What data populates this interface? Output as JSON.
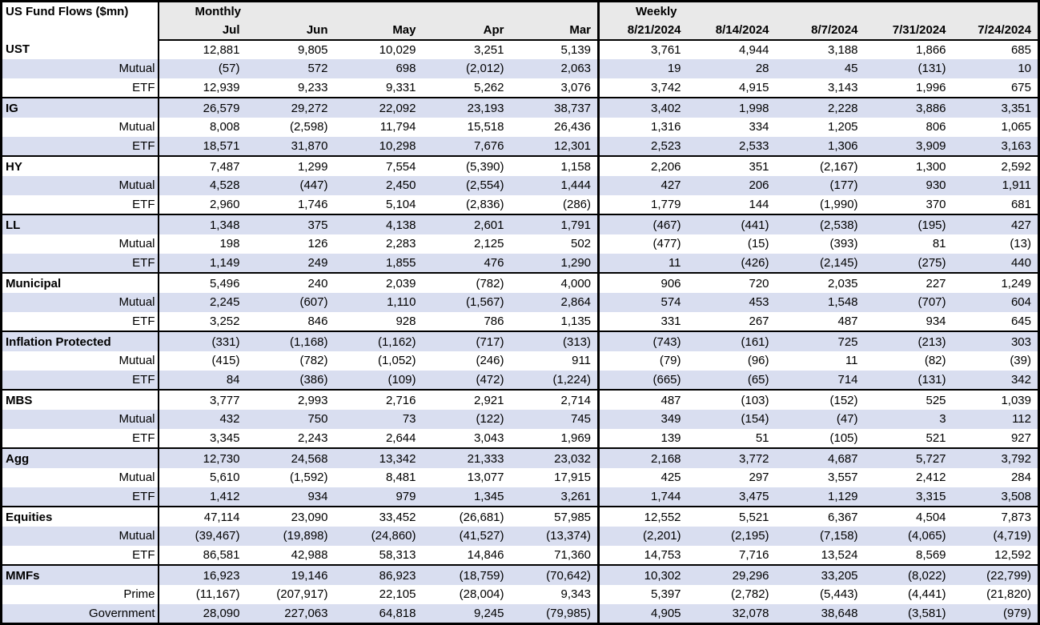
{
  "colors": {
    "stripe_row": "#D9DEF0",
    "header_band": "#E9E9E9",
    "border": "#000000",
    "background": "#FFFFFF",
    "text": "#000000"
  },
  "chart_data": {
    "type": "table",
    "title": "US Fund Flows ($mn)",
    "units": "$mn",
    "column_groups": [
      {
        "label": "Monthly",
        "columns": [
          "Jul",
          "Jun",
          "May",
          "Apr",
          "Mar"
        ]
      },
      {
        "label": "Weekly",
        "columns": [
          "8/21/2024",
          "8/14/2024",
          "8/7/2024",
          "7/31/2024",
          "7/24/2024"
        ]
      }
    ],
    "groups": [
      {
        "label": "UST",
        "rows": [
          {
            "label": "UST",
            "monthly": [
              "12,881",
              "9,805",
              "10,029",
              "3,251",
              "5,139"
            ],
            "weekly": [
              "3,761",
              "4,944",
              "3,188",
              "1,866",
              "685"
            ]
          },
          {
            "label": "Mutual",
            "monthly": [
              "(57)",
              "572",
              "698",
              "(2,012)",
              "2,063"
            ],
            "weekly": [
              "19",
              "28",
              "45",
              "(131)",
              "10"
            ]
          },
          {
            "label": "ETF",
            "monthly": [
              "12,939",
              "9,233",
              "9,331",
              "5,262",
              "3,076"
            ],
            "weekly": [
              "3,742",
              "4,915",
              "3,143",
              "1,996",
              "675"
            ]
          }
        ]
      },
      {
        "label": "IG",
        "rows": [
          {
            "label": "IG",
            "monthly": [
              "26,579",
              "29,272",
              "22,092",
              "23,193",
              "38,737"
            ],
            "weekly": [
              "3,402",
              "1,998",
              "2,228",
              "3,886",
              "3,351"
            ]
          },
          {
            "label": "Mutual",
            "monthly": [
              "8,008",
              "(2,598)",
              "11,794",
              "15,518",
              "26,436"
            ],
            "weekly": [
              "1,316",
              "334",
              "1,205",
              "806",
              "1,065"
            ]
          },
          {
            "label": "ETF",
            "monthly": [
              "18,571",
              "31,870",
              "10,298",
              "7,676",
              "12,301"
            ],
            "weekly": [
              "2,523",
              "2,533",
              "1,306",
              "3,909",
              "3,163"
            ]
          }
        ]
      },
      {
        "label": "HY",
        "rows": [
          {
            "label": "HY",
            "monthly": [
              "7,487",
              "1,299",
              "7,554",
              "(5,390)",
              "1,158"
            ],
            "weekly": [
              "2,206",
              "351",
              "(2,167)",
              "1,300",
              "2,592"
            ]
          },
          {
            "label": "Mutual",
            "monthly": [
              "4,528",
              "(447)",
              "2,450",
              "(2,554)",
              "1,444"
            ],
            "weekly": [
              "427",
              "206",
              "(177)",
              "930",
              "1,911"
            ]
          },
          {
            "label": "ETF",
            "monthly": [
              "2,960",
              "1,746",
              "5,104",
              "(2,836)",
              "(286)"
            ],
            "weekly": [
              "1,779",
              "144",
              "(1,990)",
              "370",
              "681"
            ]
          }
        ]
      },
      {
        "label": "LL",
        "rows": [
          {
            "label": "LL",
            "monthly": [
              "1,348",
              "375",
              "4,138",
              "2,601",
              "1,791"
            ],
            "weekly": [
              "(467)",
              "(441)",
              "(2,538)",
              "(195)",
              "427"
            ]
          },
          {
            "label": "Mutual",
            "monthly": [
              "198",
              "126",
              "2,283",
              "2,125",
              "502"
            ],
            "weekly": [
              "(477)",
              "(15)",
              "(393)",
              "81",
              "(13)"
            ]
          },
          {
            "label": "ETF",
            "monthly": [
              "1,149",
              "249",
              "1,855",
              "476",
              "1,290"
            ],
            "weekly": [
              "11",
              "(426)",
              "(2,145)",
              "(275)",
              "440"
            ]
          }
        ]
      },
      {
        "label": "Municipal",
        "rows": [
          {
            "label": "Municipal",
            "monthly": [
              "5,496",
              "240",
              "2,039",
              "(782)",
              "4,000"
            ],
            "weekly": [
              "906",
              "720",
              "2,035",
              "227",
              "1,249"
            ]
          },
          {
            "label": "Mutual",
            "monthly": [
              "2,245",
              "(607)",
              "1,110",
              "(1,567)",
              "2,864"
            ],
            "weekly": [
              "574",
              "453",
              "1,548",
              "(707)",
              "604"
            ]
          },
          {
            "label": "ETF",
            "monthly": [
              "3,252",
              "846",
              "928",
              "786",
              "1,135"
            ],
            "weekly": [
              "331",
              "267",
              "487",
              "934",
              "645"
            ]
          }
        ]
      },
      {
        "label": "Inflation Protected",
        "rows": [
          {
            "label": "Inflation Protected",
            "monthly": [
              "(331)",
              "(1,168)",
              "(1,162)",
              "(717)",
              "(313)"
            ],
            "weekly": [
              "(743)",
              "(161)",
              "725",
              "(213)",
              "303"
            ]
          },
          {
            "label": "Mutual",
            "monthly": [
              "(415)",
              "(782)",
              "(1,052)",
              "(246)",
              "911"
            ],
            "weekly": [
              "(79)",
              "(96)",
              "11",
              "(82)",
              "(39)"
            ]
          },
          {
            "label": "ETF",
            "monthly": [
              "84",
              "(386)",
              "(109)",
              "(472)",
              "(1,224)"
            ],
            "weekly": [
              "(665)",
              "(65)",
              "714",
              "(131)",
              "342"
            ]
          }
        ]
      },
      {
        "label": "MBS",
        "rows": [
          {
            "label": "MBS",
            "monthly": [
              "3,777",
              "2,993",
              "2,716",
              "2,921",
              "2,714"
            ],
            "weekly": [
              "487",
              "(103)",
              "(152)",
              "525",
              "1,039"
            ]
          },
          {
            "label": "Mutual",
            "monthly": [
              "432",
              "750",
              "73",
              "(122)",
              "745"
            ],
            "weekly": [
              "349",
              "(154)",
              "(47)",
              "3",
              "112"
            ]
          },
          {
            "label": "ETF",
            "monthly": [
              "3,345",
              "2,243",
              "2,644",
              "3,043",
              "1,969"
            ],
            "weekly": [
              "139",
              "51",
              "(105)",
              "521",
              "927"
            ]
          }
        ]
      },
      {
        "label": "Agg",
        "rows": [
          {
            "label": "Agg",
            "monthly": [
              "12,730",
              "24,568",
              "13,342",
              "21,333",
              "23,032"
            ],
            "weekly": [
              "2,168",
              "3,772",
              "4,687",
              "5,727",
              "3,792"
            ]
          },
          {
            "label": "Mutual",
            "monthly": [
              "5,610",
              "(1,592)",
              "8,481",
              "13,077",
              "17,915"
            ],
            "weekly": [
              "425",
              "297",
              "3,557",
              "2,412",
              "284"
            ]
          },
          {
            "label": "ETF",
            "monthly": [
              "1,412",
              "934",
              "979",
              "1,345",
              "3,261"
            ],
            "weekly": [
              "1,744",
              "3,475",
              "1,129",
              "3,315",
              "3,508"
            ]
          }
        ]
      },
      {
        "label": "Equities",
        "rows": [
          {
            "label": "Equities",
            "monthly": [
              "47,114",
              "23,090",
              "33,452",
              "(26,681)",
              "57,985"
            ],
            "weekly": [
              "12,552",
              "5,521",
              "6,367",
              "4,504",
              "7,873"
            ]
          },
          {
            "label": "Mutual",
            "monthly": [
              "(39,467)",
              "(19,898)",
              "(24,860)",
              "(41,527)",
              "(13,374)"
            ],
            "weekly": [
              "(2,201)",
              "(2,195)",
              "(7,158)",
              "(4,065)",
              "(4,719)"
            ]
          },
          {
            "label": "ETF",
            "monthly": [
              "86,581",
              "42,988",
              "58,313",
              "14,846",
              "71,360"
            ],
            "weekly": [
              "14,753",
              "7,716",
              "13,524",
              "8,569",
              "12,592"
            ]
          }
        ]
      },
      {
        "label": "MMFs",
        "rows": [
          {
            "label": "MMFs",
            "monthly": [
              "16,923",
              "19,146",
              "86,923",
              "(18,759)",
              "(70,642)"
            ],
            "weekly": [
              "10,302",
              "29,296",
              "33,205",
              "(8,022)",
              "(22,799)"
            ]
          },
          {
            "label": "Prime",
            "monthly": [
              "(11,167)",
              "(207,917)",
              "22,105",
              "(28,004)",
              "9,343"
            ],
            "weekly": [
              "5,397",
              "(2,782)",
              "(5,443)",
              "(4,441)",
              "(21,820)"
            ]
          },
          {
            "label": "Government",
            "monthly": [
              "28,090",
              "227,063",
              "64,818",
              "9,245",
              "(79,985)"
            ],
            "weekly": [
              "4,905",
              "32,078",
              "38,648",
              "(3,581)",
              "(979)"
            ]
          }
        ]
      }
    ]
  }
}
